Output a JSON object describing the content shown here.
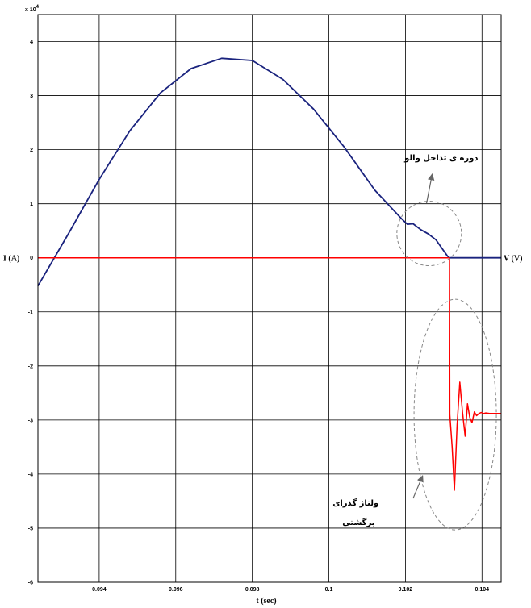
{
  "chart_data": {
    "type": "line",
    "xlabel": "t (sec)",
    "ylabel_left": "I (A)",
    "ylabel_right": "V (V)",
    "exponent_label": "x 10",
    "exponent_power": "4",
    "xlim": [
      0.0924,
      0.1045
    ],
    "ylim": [
      -6,
      4.5
    ],
    "grid": true,
    "x_ticks": [
      0.094,
      0.096,
      0.098,
      0.1,
      0.102,
      0.104
    ],
    "x_tick_labels": [
      "0.094",
      "0.096",
      "0.098",
      "0.1",
      "0.102",
      "0.104"
    ],
    "y_ticks": [
      4,
      3,
      2,
      1,
      0,
      -1,
      -2,
      -3,
      -4,
      -5,
      -6
    ],
    "y_tick_labels": [
      "4",
      "3",
      "2",
      "1",
      "0",
      "-1",
      "-2",
      "-3",
      "-4",
      "-5",
      "-6"
    ],
    "colors": {
      "current": "#1a237e",
      "voltage": "#ff0000",
      "ellipse": "#888888",
      "arrow": "#666666"
    },
    "series": [
      {
        "key": "current",
        "x": [
          0.0924,
          0.0932,
          0.094,
          0.0948,
          0.0956,
          0.0964,
          0.0972,
          0.098,
          0.0988,
          0.0996,
          0.1004,
          0.1012,
          0.1019,
          0.10205,
          0.1022,
          0.1024,
          0.1026,
          0.1028,
          0.103,
          0.1031,
          0.10315,
          0.1045
        ],
        "y": [
          -0.52,
          0.45,
          1.45,
          2.35,
          3.05,
          3.5,
          3.69,
          3.65,
          3.3,
          2.75,
          2.05,
          1.25,
          0.72,
          0.62,
          0.63,
          0.52,
          0.44,
          0.33,
          0.13,
          0.03,
          0.0,
          0.0
        ]
      },
      {
        "key": "voltage",
        "x": [
          0.0924,
          0.10315,
          0.10316,
          0.10322,
          0.10328,
          0.10335,
          0.10342,
          0.10349,
          0.10356,
          0.10362,
          0.10368,
          0.10374,
          0.1038,
          0.10386,
          0.10392,
          0.10398,
          0.10404,
          0.1041,
          0.1042,
          0.1045
        ],
        "y": [
          0,
          0,
          -2.9,
          -3.5,
          -4.3,
          -3.1,
          -2.3,
          -2.85,
          -3.3,
          -2.7,
          -2.95,
          -3.05,
          -2.85,
          -2.92,
          -2.88,
          -2.86,
          -2.88,
          -2.87,
          -2.88,
          -2.88
        ]
      }
    ],
    "annotations": [
      {
        "key": "overlap",
        "text": "دوره ی تداخل والو"
      },
      {
        "key": "transient",
        "lines": [
          "ولتاژ گذرای",
          "برگشتی"
        ]
      }
    ]
  }
}
